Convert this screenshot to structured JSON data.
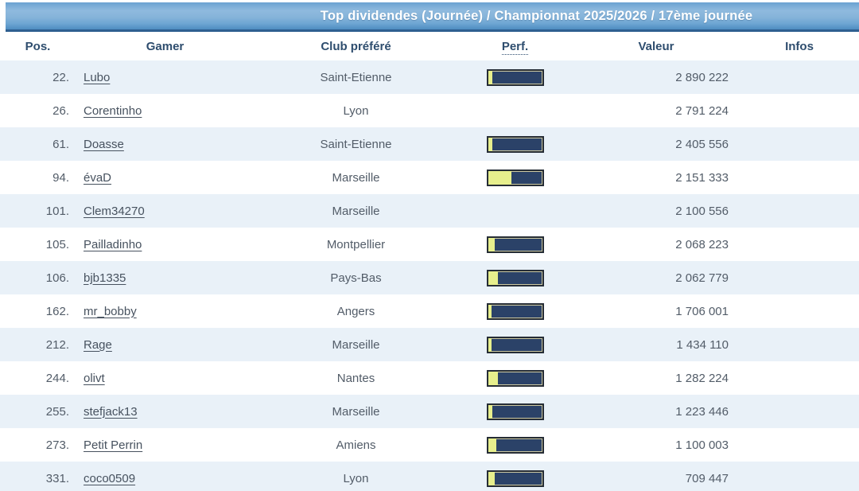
{
  "header": {
    "title": "Top dividendes (Journée) / Championnat 2025/2026 / 17ème journée"
  },
  "table": {
    "columns": {
      "pos": "Pos.",
      "gamer": "Gamer",
      "club": "Club préféré",
      "perf": "Perf.",
      "valeur": "Valeur",
      "infos": "Infos"
    },
    "rows": [
      {
        "pos": "22.",
        "gamer": "Lubo",
        "club": "Saint-Etienne",
        "has_perf": true,
        "perf_pct": 8,
        "valeur": "2 890 222",
        "infos": ""
      },
      {
        "pos": "26.",
        "gamer": "Corentinho",
        "club": "Lyon",
        "has_perf": false,
        "perf_pct": 0,
        "valeur": "2 791 224",
        "infos": ""
      },
      {
        "pos": "61.",
        "gamer": "Doasse",
        "club": "Saint-Etienne",
        "has_perf": true,
        "perf_pct": 8,
        "valeur": "2 405 556",
        "infos": ""
      },
      {
        "pos": "94.",
        "gamer": "évaD",
        "club": "Marseille",
        "has_perf": true,
        "perf_pct": 44,
        "valeur": "2 151 333",
        "infos": ""
      },
      {
        "pos": "101.",
        "gamer": "Clem34270",
        "club": "Marseille",
        "has_perf": false,
        "perf_pct": 0,
        "valeur": "2 100 556",
        "infos": ""
      },
      {
        "pos": "105.",
        "gamer": "Pailladinho",
        "club": "Montpellier",
        "has_perf": true,
        "perf_pct": 13,
        "valeur": "2 068 223",
        "infos": ""
      },
      {
        "pos": "106.",
        "gamer": "bjb1335",
        "club": "Pays-Bas",
        "has_perf": true,
        "perf_pct": 19,
        "valeur": "2 062 779",
        "infos": ""
      },
      {
        "pos": "162.",
        "gamer": "mr_bobby",
        "club": "Angers",
        "has_perf": true,
        "perf_pct": 6,
        "valeur": "1 706 001",
        "infos": ""
      },
      {
        "pos": "212.",
        "gamer": "Rage",
        "club": "Marseille",
        "has_perf": true,
        "perf_pct": 6,
        "valeur": "1 434 110",
        "infos": ""
      },
      {
        "pos": "244.",
        "gamer": "olivt",
        "club": "Nantes",
        "has_perf": true,
        "perf_pct": 19,
        "valeur": "1 282 224",
        "infos": ""
      },
      {
        "pos": "255.",
        "gamer": "stefjack13",
        "club": "Marseille",
        "has_perf": true,
        "perf_pct": 8,
        "valeur": "1 223 446",
        "infos": ""
      },
      {
        "pos": "273.",
        "gamer": "Petit Perrin",
        "club": "Amiens",
        "has_perf": true,
        "perf_pct": 15,
        "valeur": "1 100 003",
        "infos": ""
      },
      {
        "pos": "331.",
        "gamer": "coco0509",
        "club": "Lyon",
        "has_perf": true,
        "perf_pct": 13,
        "valeur": "709 447",
        "infos": ""
      }
    ]
  },
  "colors": {
    "header_gradient_top": "#8fbade",
    "header_gradient_bottom": "#4e8cc0",
    "header_border": "#2e5f90",
    "row_stripe": "#e9f1f8",
    "header_text": "#2e4d6e",
    "cell_text": "#525c68",
    "perf_bar_navy": "#2b4268",
    "perf_bar_yellow": "#e7ef8d",
    "perf_bar_border": "#262d36"
  }
}
